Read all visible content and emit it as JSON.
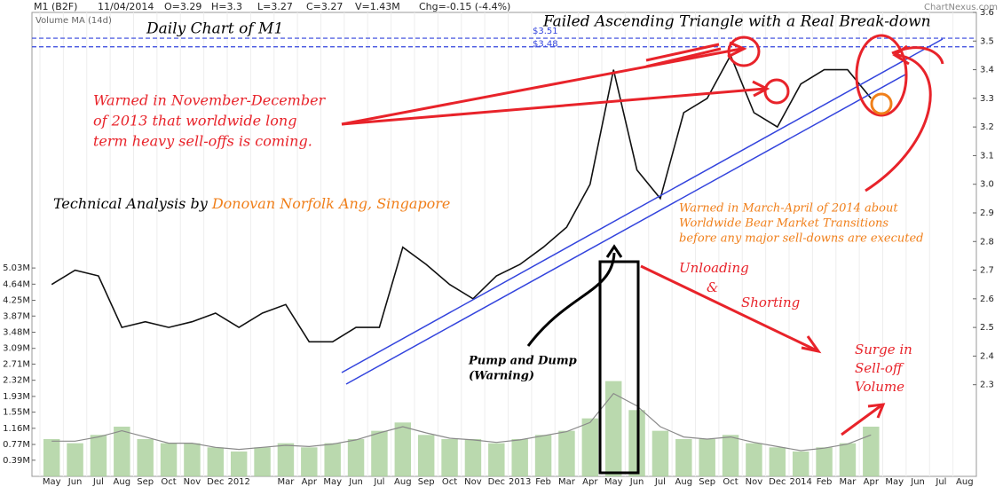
{
  "chart_data": {
    "type": "line",
    "title": "M1 (B2F)",
    "header": [
      "11/04/2014",
      "O=3.29",
      "H=3.3",
      "L=3.27",
      "C=3.27",
      "V=1.43M",
      "Chg=-0.15 (-4.4%)"
    ],
    "source": "ChartNexus.com",
    "categories": [
      "May",
      "Jun",
      "Jul",
      "Aug",
      "Sep",
      "Oct",
      "Nov",
      "Dec",
      "2012",
      null,
      "Mar",
      "Apr",
      "May",
      "Jun",
      "Jul",
      "Aug",
      "Sep",
      "Oct",
      "Nov",
      "Dec",
      "2013",
      "Feb",
      "Mar",
      "Apr",
      "May",
      "Jun",
      "Jul",
      "Aug",
      "Sep",
      "Oct",
      "Nov",
      "Dec",
      "2014",
      "Feb",
      "Mar",
      "Apr",
      "May",
      "Jun",
      "Jul",
      "Aug"
    ],
    "series": [
      {
        "type": "line",
        "color": "#111111",
        "values": [
          2.65,
          2.7,
          2.68,
          2.5,
          2.52,
          2.5,
          2.52,
          2.55,
          2.5,
          2.55,
          2.58,
          2.45,
          2.45,
          2.5,
          2.5,
          2.78,
          2.72,
          2.65,
          2.6,
          2.68,
          2.72,
          2.78,
          2.85,
          3.0,
          3.4,
          3.05,
          2.95,
          3.25,
          3.3,
          3.45,
          3.25,
          3.2,
          3.35,
          3.4,
          3.4,
          3.3,
          null,
          null,
          null,
          null
        ]
      },
      {
        "type": "bar",
        "axis": "y2",
        "color": "#a9cf9a",
        "values": [
          0.9,
          0.8,
          1.0,
          1.2,
          0.9,
          0.8,
          0.8,
          0.7,
          0.6,
          0.7,
          0.8,
          0.7,
          0.8,
          0.9,
          1.1,
          1.3,
          1.0,
          0.9,
          0.9,
          0.8,
          0.9,
          1.0,
          1.1,
          1.4,
          2.3,
          1.6,
          1.1,
          0.9,
          0.9,
          1.0,
          0.8,
          0.7,
          0.6,
          0.7,
          0.8,
          1.2,
          null,
          null,
          null,
          null
        ]
      },
      {
        "type": "line",
        "axis": "y2",
        "name": "Volume MA (14d)",
        "color": "#8a8a8a",
        "values": [
          0.85,
          0.85,
          0.95,
          1.1,
          0.95,
          0.8,
          0.8,
          0.7,
          0.65,
          0.7,
          0.75,
          0.72,
          0.78,
          0.88,
          1.05,
          1.2,
          1.05,
          0.92,
          0.88,
          0.82,
          0.88,
          0.98,
          1.08,
          1.3,
          2.0,
          1.7,
          1.2,
          0.95,
          0.9,
          0.95,
          0.82,
          0.72,
          0.62,
          0.68,
          0.78,
          1.0,
          null,
          null,
          null,
          null
        ]
      }
    ],
    "ylim": [
      1.98,
      3.6
    ],
    "yticks": [
      2.3,
      2.4,
      2.5,
      2.6,
      2.7,
      2.8,
      2.9,
      {
        "value": 3,
        "label": "3.0"
      },
      3.1,
      3.2,
      3.3,
      3.4,
      3.5,
      3.6
    ],
    "y2lim": [
      0,
      11.2
    ],
    "y2ticks": [
      {
        "value": 0.39,
        "label": "0.39M"
      },
      {
        "value": 0.77,
        "label": "0.77M"
      },
      {
        "value": 1.16,
        "label": "1.16M"
      },
      {
        "value": 1.55,
        "label": "1.55M"
      },
      {
        "value": 1.93,
        "label": "1.93M"
      },
      {
        "value": 2.32,
        "label": "2.32M"
      },
      {
        "value": 2.71,
        "label": "2.71M"
      },
      {
        "value": 3.09,
        "label": "3.09M"
      },
      {
        "value": 3.48,
        "label": "3.48M"
      },
      {
        "value": 3.87,
        "label": "3.87M"
      },
      {
        "value": 4.25,
        "label": "4.25M"
      },
      {
        "value": 4.64,
        "label": "4.64M"
      },
      {
        "value": 5.03,
        "label": "5.03M"
      }
    ],
    "levels": [
      {
        "value": 3.51,
        "label": "$3.51"
      },
      {
        "value": 3.48,
        "label": "$3.48"
      }
    ],
    "level_color": "#3344dd",
    "annotations": {
      "left_title": "Daily Chart of M1",
      "right_title": "Failed Ascending Triangle with a Real Break-down",
      "warn_2013": [
        "Warned in November-December",
        "of 2013 that worldwide long",
        "term heavy sell-offs is coming."
      ],
      "by": "Technical Analysis by",
      "author": "Donovan Norfolk Ang, Singapore",
      "warn_2014": [
        "Warned in March-April of 2014 about",
        "Worldwide Bear Market Transitions",
        "before any major sell-downs are executed"
      ],
      "unloading": [
        "Unloading",
        "&",
        "Shorting"
      ],
      "pump": [
        "Pump and Dump",
        "(Warning)"
      ],
      "surge": [
        "Surge in",
        "Sell-off",
        "Volume"
      ]
    }
  }
}
